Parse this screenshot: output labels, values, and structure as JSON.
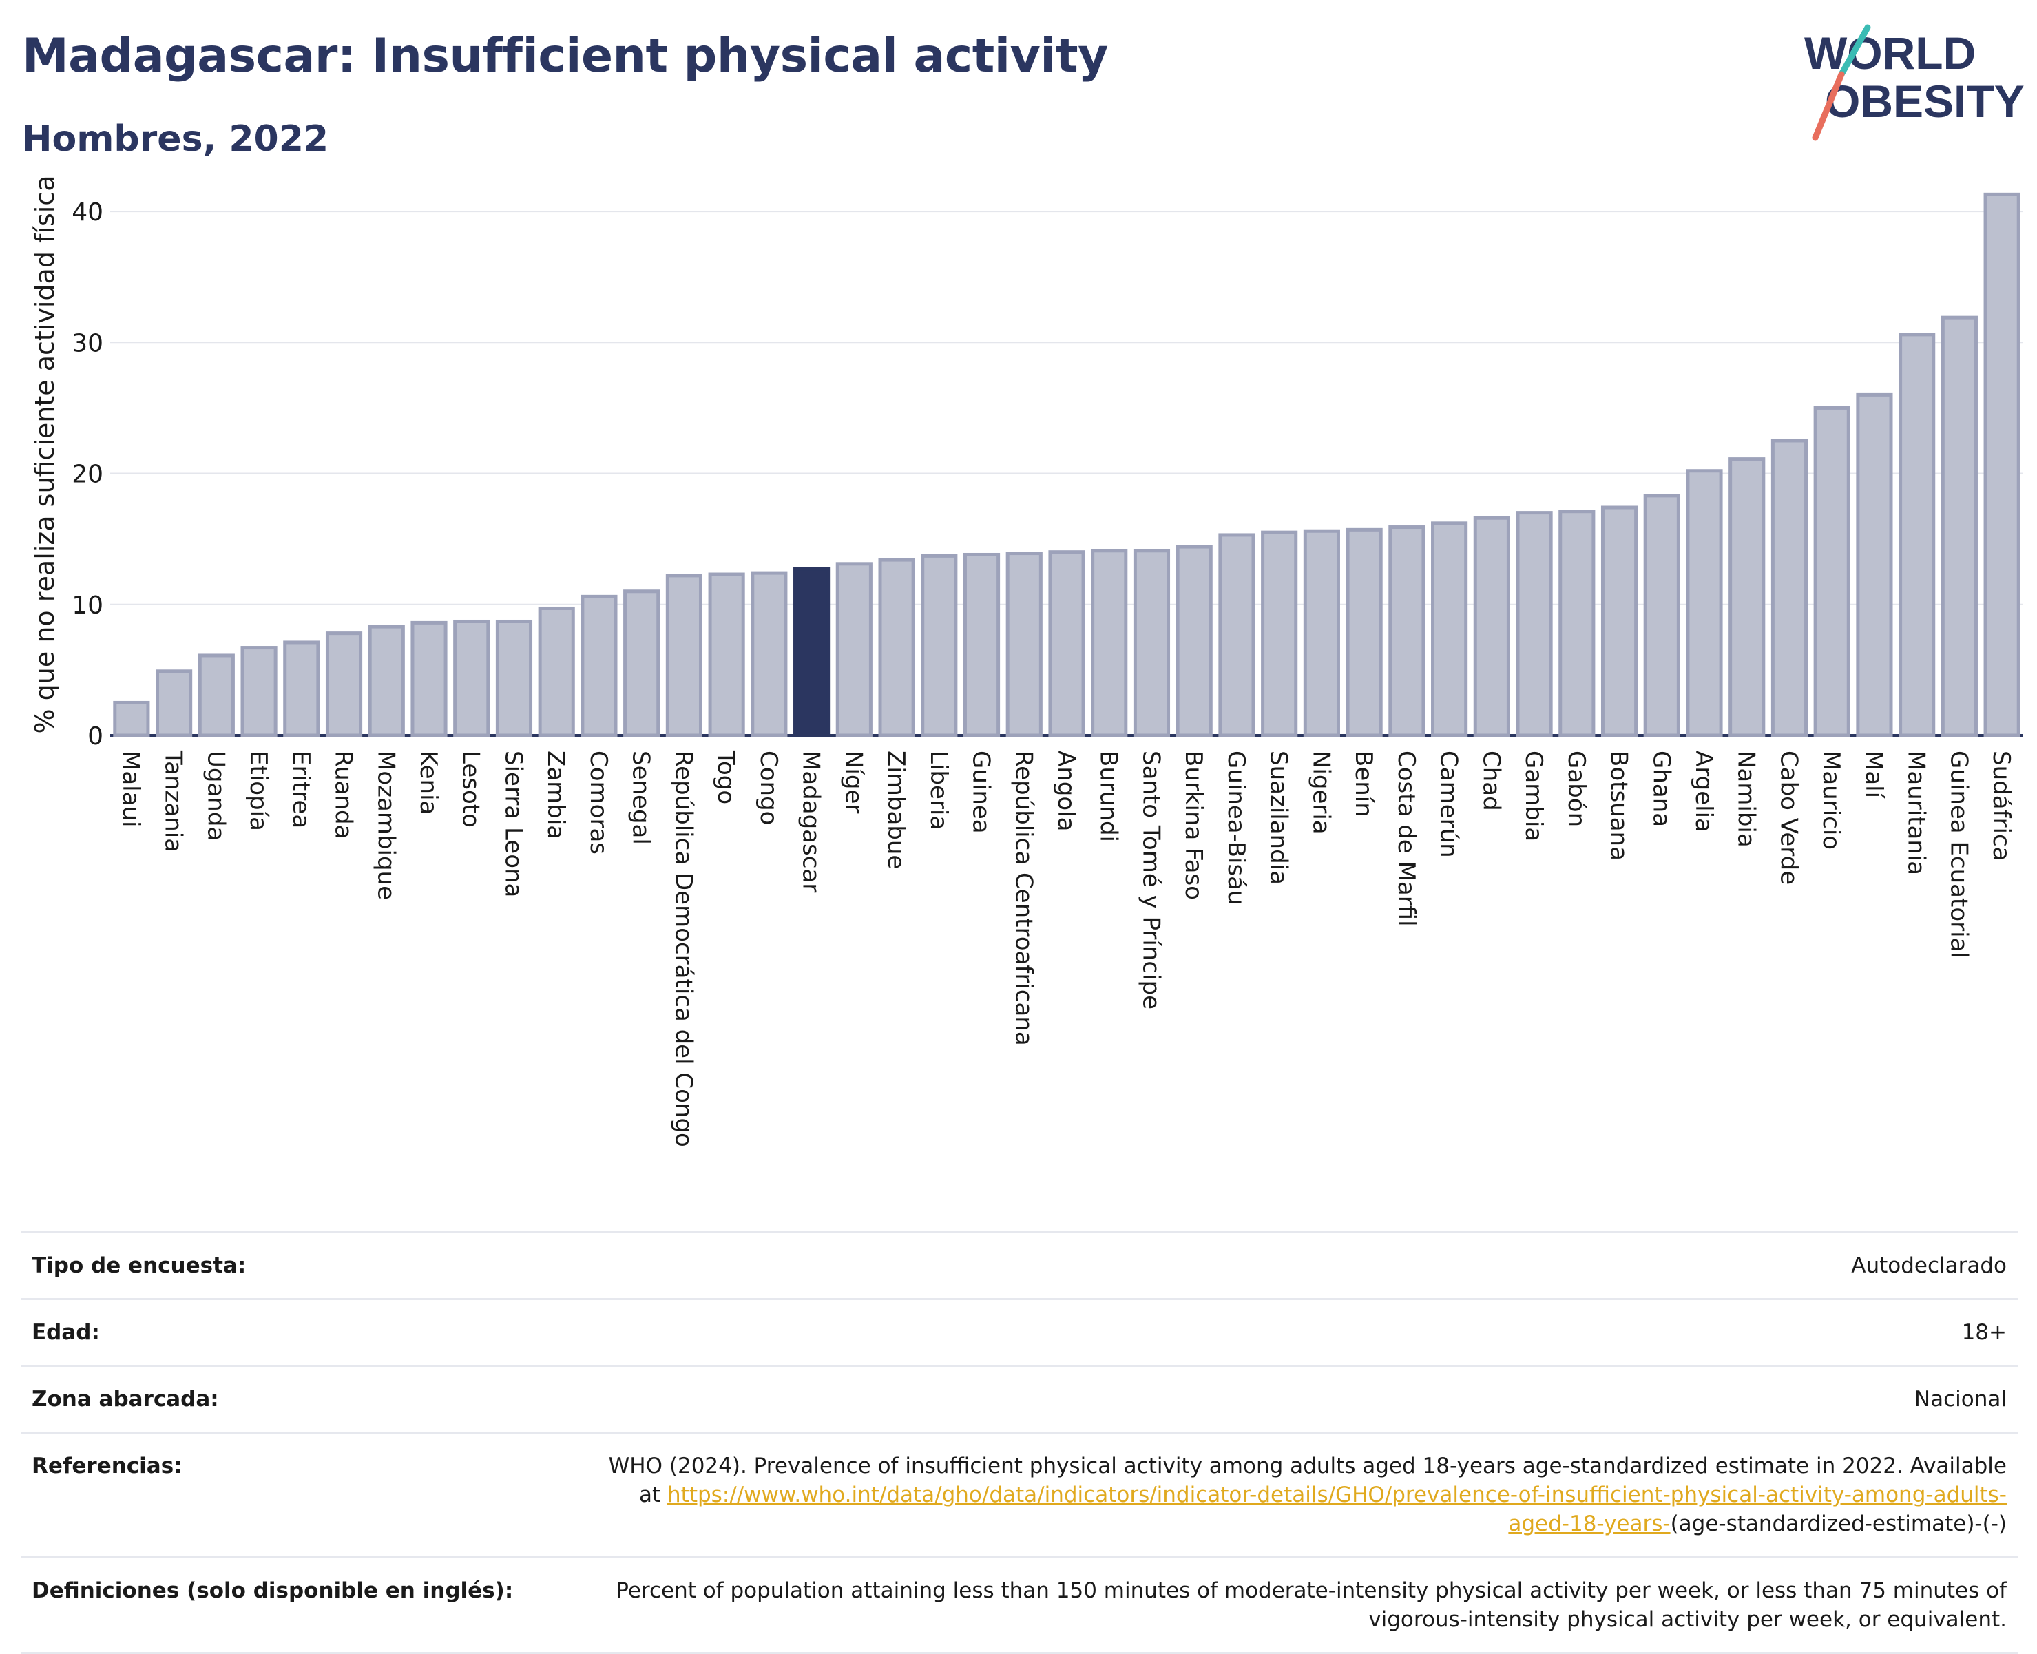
{
  "header": {
    "title": "Madagascar: Insufficient physical activity",
    "subtitle": "Hombres, 2022"
  },
  "logo": {
    "line1": "WORLD",
    "line2": "OBESITY"
  },
  "colors": {
    "highlight": "#2b3660",
    "bar_fill": "#bcc0cf",
    "bar_stroke": "#9da2ba",
    "link": "#e0a91e"
  },
  "chart_data": {
    "type": "bar",
    "ylabel": "% que no realiza suficiente actividad física",
    "ylim": [
      0,
      43
    ],
    "yticks": [
      0,
      10,
      20,
      30,
      40
    ],
    "grid": true,
    "highlight": "Madagascar",
    "categories": [
      "Malaui",
      "Tanzania",
      "Uganda",
      "Etiopía",
      "Eritrea",
      "Ruanda",
      "Mozambique",
      "Kenia",
      "Lesoto",
      "Sierra Leona",
      "Zambia",
      "Comoras",
      "Senegal",
      "República Democrática del Congo",
      "Togo",
      "Congo",
      "Madagascar",
      "Níger",
      "Zimbabue",
      "Liberia",
      "Guinea",
      "República Centroafricana",
      "Angola",
      "Burundi",
      "Santo Tomé y Príncipe",
      "Burkina Faso",
      "Guinea-Bisáu",
      "Suazilandia",
      "Nigeria",
      "Benín",
      "Costa de Marfil",
      "Camerún",
      "Chad",
      "Gambia",
      "Gabón",
      "Botsuana",
      "Ghana",
      "Argelia",
      "Namibia",
      "Cabo Verde",
      "Mauricio",
      "Malí",
      "Mauritania",
      "Guinea Ecuatorial",
      "Sudáfrica"
    ],
    "values": [
      2.5,
      4.9,
      6.1,
      6.7,
      7.1,
      7.8,
      8.3,
      8.6,
      8.7,
      8.7,
      9.7,
      10.6,
      11.0,
      12.2,
      12.3,
      12.4,
      12.7,
      13.1,
      13.4,
      13.7,
      13.8,
      13.9,
      14.0,
      14.1,
      14.1,
      14.4,
      15.3,
      15.5,
      15.6,
      15.7,
      15.9,
      16.2,
      16.6,
      17.0,
      17.1,
      17.4,
      18.3,
      20.2,
      21.1,
      22.5,
      25.0,
      26.0,
      30.6,
      31.9,
      41.3
    ]
  },
  "info": [
    {
      "label": "Tipo de encuesta:",
      "value": "Autodeclarado"
    },
    {
      "label": "Edad:",
      "value": "18+"
    },
    {
      "label": "Zona abarcada:",
      "value": "Nacional"
    },
    {
      "label": "Referencias:",
      "value": "WHO (2024). Prevalence of insufficient physical activity among adults aged 18-years age-standardized estimate in 2022. Available at",
      "link": "https://www.who.int/data/gho/data/indicators/indicator-details/GHO/prevalence-of-insufficient-physical-activity-among-adults-aged-18-years-",
      "link_suffix": "(age-standardized-estimate)-(-)"
    },
    {
      "label": "Definiciones (solo disponible en inglés):",
      "value": "Percent of population attaining less than 150 minutes of moderate-intensity physical activity per week, or less than 75 minutes of vigorous-intensity physical activity per week, or equivalent."
    }
  ]
}
